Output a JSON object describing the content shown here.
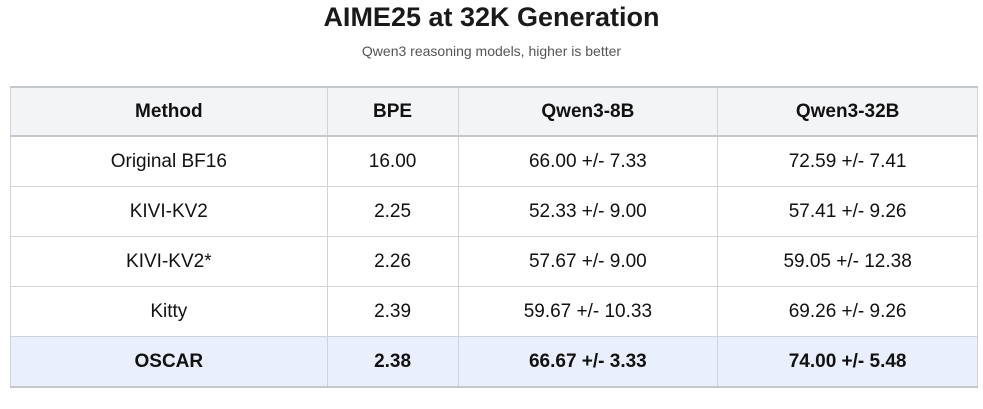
{
  "header": {
    "title": "AIME25 at 32K Generation",
    "subtitle": "Qwen3 reasoning models, higher is better"
  },
  "table": {
    "columns": [
      "Method",
      "BPE",
      "Qwen3-8B",
      "Qwen3-32B"
    ],
    "rows": [
      [
        "Original BF16",
        "16.00",
        "66.00 +/- 7.33",
        "72.59 +/- 7.41"
      ],
      [
        "KIVI-KV2",
        "2.25",
        "52.33 +/- 9.00",
        "57.41 +/- 9.26"
      ],
      [
        "KIVI-KV2*",
        "2.26",
        "57.67 +/- 9.00",
        "59.05 +/- 12.38"
      ],
      [
        "Kitty",
        "2.39",
        "59.67 +/- 10.33",
        "69.26 +/- 9.26"
      ],
      [
        "OSCAR",
        "2.38",
        "66.67 +/- 3.33",
        "74.00 +/- 5.48"
      ]
    ]
  }
}
